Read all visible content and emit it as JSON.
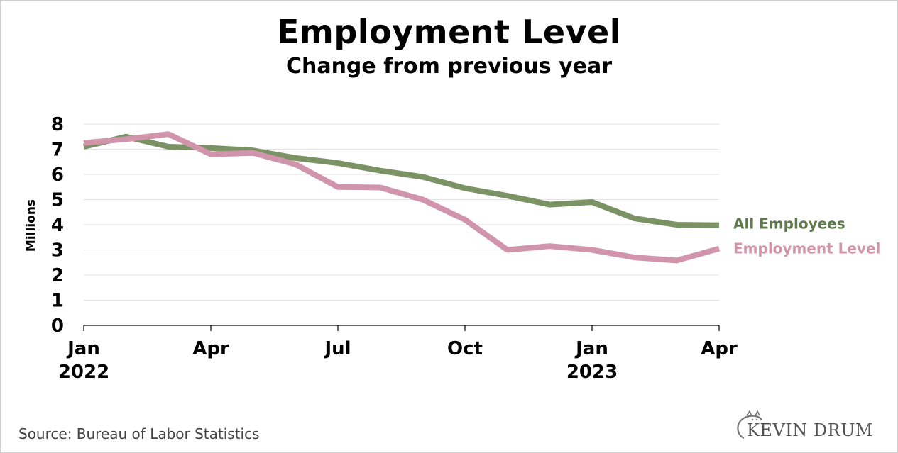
{
  "chart_data": {
    "type": "line",
    "title": "Employment Level",
    "subtitle": "Change from previous year",
    "xlabel": "",
    "ylabel": "Millions",
    "ylim": [
      0,
      8
    ],
    "yticks": [
      "0",
      "1",
      "2",
      "3",
      "4",
      "5",
      "6",
      "7",
      "8"
    ],
    "x": [
      "Jan 2022",
      "Feb 2022",
      "Mar 2022",
      "Apr 2022",
      "May 2022",
      "Jun 2022",
      "Jul 2022",
      "Aug 2022",
      "Sep 2022",
      "Oct 2022",
      "Nov 2022",
      "Dec 2022",
      "Jan 2023",
      "Feb 2023",
      "Mar 2023",
      "Apr 2023"
    ],
    "xticks": [
      {
        "index": 0,
        "label": "Jan",
        "sublabel": "2022"
      },
      {
        "index": 3,
        "label": "Apr",
        "sublabel": ""
      },
      {
        "index": 6,
        "label": "Jul",
        "sublabel": ""
      },
      {
        "index": 9,
        "label": "Oct",
        "sublabel": ""
      },
      {
        "index": 12,
        "label": "Jan",
        "sublabel": "2023"
      },
      {
        "index": 15,
        "label": "Apr",
        "sublabel": ""
      }
    ],
    "grid": true,
    "legend_position": "right",
    "series": [
      {
        "name": "All Employees",
        "color": "#7a9264",
        "values": [
          7.1,
          7.5,
          7.1,
          7.05,
          6.95,
          6.65,
          6.45,
          6.15,
          5.9,
          5.45,
          5.15,
          4.8,
          4.9,
          4.25,
          4.0,
          3.98
        ]
      },
      {
        "name": "Employment Level",
        "color": "#d195ab",
        "values": [
          7.25,
          7.4,
          7.6,
          6.8,
          6.85,
          6.4,
          5.5,
          5.48,
          5.0,
          4.2,
          3.0,
          3.15,
          3.0,
          2.7,
          2.58,
          3.05
        ]
      }
    ]
  },
  "footer": {
    "source": "Source: Bureau of Labor Statistics",
    "logo": "KEVIN DRUM"
  }
}
